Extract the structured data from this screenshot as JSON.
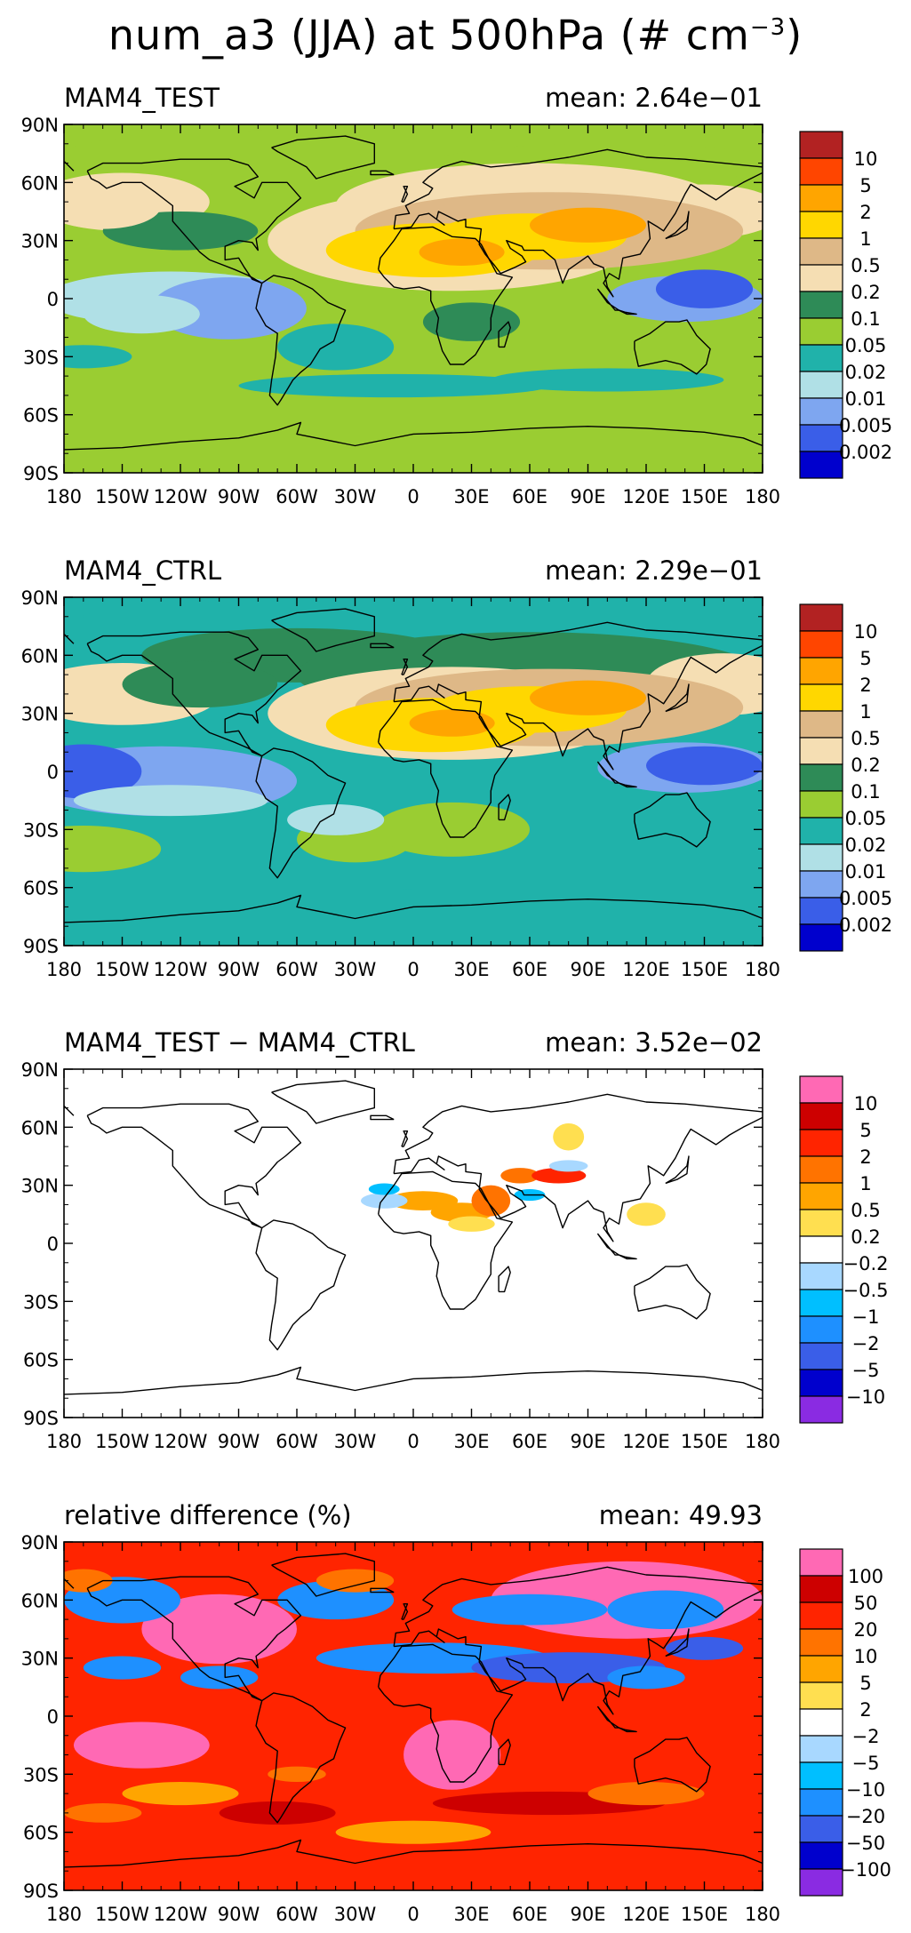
{
  "page": {
    "title_prefix": "num_a3 (JJA) at 500hPa (# cm",
    "title_superscript": "−3",
    "title_suffix": ")"
  },
  "colors": {
    "abs_scale": [
      "#0000cd",
      "#3a5ee8",
      "#7ea6f0",
      "#b0e0e6",
      "#20b2aa",
      "#9acd32",
      "#2e8b57",
      "#f5deb3",
      "#deb887",
      "#ffd700",
      "#ffa500",
      "#ff4500",
      "#b22222"
    ],
    "diff_scale": [
      "#8a2be2",
      "#0000cd",
      "#3a5ee8",
      "#1e90ff",
      "#00bfff",
      "#a8d8ff",
      "#ffffff",
      "#ffdf50",
      "#ffa500",
      "#ff7300",
      "#ff2400",
      "#cd0000",
      "#ff69b4"
    ],
    "coastline": "#000000"
  },
  "axes": {
    "lat_ticks": [
      "90N",
      "60N",
      "30N",
      "0",
      "30S",
      "60S",
      "90S"
    ],
    "lon_ticks": [
      "180",
      "150W",
      "120W",
      "90W",
      "60W",
      "30W",
      "0",
      "30E",
      "60E",
      "90E",
      "120E",
      "150E",
      "180"
    ]
  },
  "chart_data": [
    {
      "type": "heatmap",
      "title": "MAM4_TEST",
      "mean_label": "mean: 2.64e−01",
      "mean": 0.264,
      "units": "# cm−3",
      "xlim": [
        -180,
        180
      ],
      "ylim": [
        -90,
        90
      ],
      "levels_labels": [
        "10",
        "5",
        "2",
        "1",
        "0.5",
        "0.2",
        "0.1",
        "0.05",
        "0.02",
        "0.01",
        "0.005",
        "0.002"
      ],
      "levels": [
        10,
        5,
        2,
        1,
        0.5,
        0.2,
        0.1,
        0.05,
        0.02,
        0.01,
        0.005,
        0.002
      ],
      "scale": "abs"
    },
    {
      "type": "heatmap",
      "title": "MAM4_CTRL",
      "mean_label": "mean: 2.29e−01",
      "mean": 0.229,
      "units": "# cm−3",
      "xlim": [
        -180,
        180
      ],
      "ylim": [
        -90,
        90
      ],
      "levels_labels": [
        "10",
        "5",
        "2",
        "1",
        "0.5",
        "0.2",
        "0.1",
        "0.05",
        "0.02",
        "0.01",
        "0.005",
        "0.002"
      ],
      "levels": [
        10,
        5,
        2,
        1,
        0.5,
        0.2,
        0.1,
        0.05,
        0.02,
        0.01,
        0.005,
        0.002
      ],
      "scale": "abs"
    },
    {
      "type": "heatmap",
      "title": "MAM4_TEST − MAM4_CTRL",
      "mean_label": "mean: 3.52e−02",
      "mean": 0.0352,
      "xlim": [
        -180,
        180
      ],
      "ylim": [
        -90,
        90
      ],
      "levels_labels": [
        "10",
        "5",
        "2",
        "1",
        "0.5",
        "0.2",
        "−0.2",
        "−0.5",
        "−1",
        "−2",
        "−5",
        "−10"
      ],
      "levels": [
        10,
        5,
        2,
        1,
        0.5,
        0.2,
        -0.2,
        -0.5,
        -1,
        -2,
        -5,
        -10
      ],
      "scale": "diff"
    },
    {
      "type": "heatmap",
      "title": "relative difference (%)",
      "mean_label": "mean: 49.93",
      "mean": 49.93,
      "xlim": [
        -180,
        180
      ],
      "ylim": [
        -90,
        90
      ],
      "levels_labels": [
        "100",
        "50",
        "20",
        "10",
        "5",
        "2",
        "−2",
        "−5",
        "−10",
        "−20",
        "−50",
        "−100"
      ],
      "levels": [
        100,
        50,
        20,
        10,
        5,
        2,
        -2,
        -5,
        -10,
        -20,
        -50,
        -100
      ],
      "scale": "diff"
    }
  ]
}
